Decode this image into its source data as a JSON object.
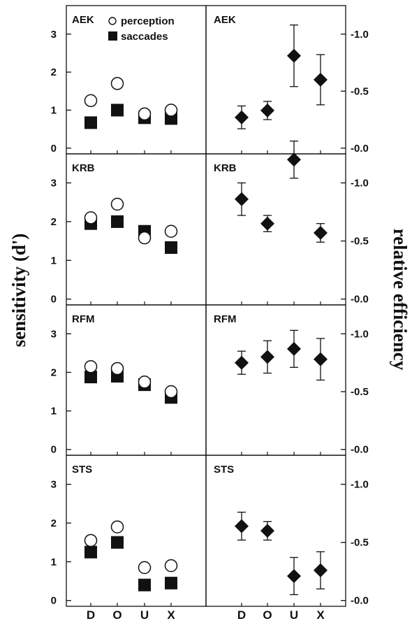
{
  "chart_data": {
    "type": "scatter",
    "categories": [
      "D",
      "O",
      "U",
      "X"
    ],
    "ylabel_left": "sensitivity (d')",
    "ylabel_right": "relative efficiency",
    "left_axis": {
      "ylim": [
        -0.15,
        3.75
      ],
      "ticks": [
        0,
        1,
        2,
        3
      ],
      "tick_labels": [
        "0",
        "1",
        "2",
        "3"
      ]
    },
    "right_axis": {
      "ylim": [
        -0.05,
        1.25
      ],
      "ticks": [
        0.0,
        0.5,
        1.0
      ],
      "tick_labels": [
        "0.0",
        "0.5",
        "1.0"
      ]
    },
    "legend": {
      "perception": "perception",
      "saccades": "saccades"
    },
    "marker_colors": {
      "perception_fill": "#ffffff",
      "saccades_fill": "#111111",
      "efficiency_fill": "#111111"
    },
    "panels": [
      {
        "subject": "AEK",
        "perception": [
          1.25,
          1.7,
          0.9,
          1.0
        ],
        "saccades": [
          0.67,
          1.0,
          0.8,
          0.78
        ],
        "efficiency": [
          0.27,
          0.33,
          0.81,
          0.6
        ],
        "efficiency_err": [
          0.1,
          0.08,
          0.27,
          0.22
        ]
      },
      {
        "subject": "KRB",
        "perception": [
          2.1,
          2.45,
          1.58,
          1.75
        ],
        "saccades": [
          1.95,
          2.0,
          1.75,
          1.33
        ],
        "efficiency": [
          0.86,
          0.65,
          1.2,
          0.57
        ],
        "efficiency_err": [
          0.14,
          0.07,
          0.16,
          0.08
        ]
      },
      {
        "subject": "RFM",
        "perception": [
          2.15,
          2.1,
          1.75,
          1.5
        ],
        "saccades": [
          1.88,
          1.9,
          1.68,
          1.35
        ],
        "efficiency": [
          0.75,
          0.8,
          0.87,
          0.78
        ],
        "efficiency_err": [
          0.1,
          0.14,
          0.16,
          0.18
        ]
      },
      {
        "subject": "STS",
        "perception": [
          1.55,
          1.9,
          0.85,
          0.9
        ],
        "saccades": [
          1.25,
          1.5,
          0.4,
          0.45
        ],
        "efficiency": [
          0.64,
          0.6,
          0.21,
          0.26
        ],
        "efficiency_err": [
          0.12,
          0.08,
          0.16,
          0.16
        ]
      }
    ]
  }
}
